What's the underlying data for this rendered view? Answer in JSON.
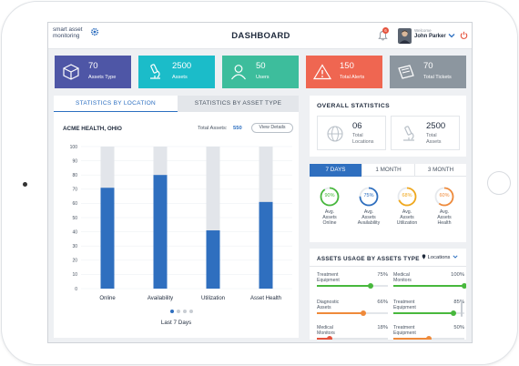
{
  "app": {
    "logo_line1": "smart asset",
    "logo_line2": "monitoring",
    "title": "DASHBOARD",
    "notification_count": "6",
    "welcome": "Welcome",
    "user_name": "John Parker"
  },
  "summary_cards": [
    {
      "value": "70",
      "label": "Assets Type",
      "color": "#4e56a6",
      "icon": "cube-icon"
    },
    {
      "value": "2500",
      "label": "Assets",
      "color": "#1bbcc9",
      "icon": "microscope-icon"
    },
    {
      "value": "50",
      "label": "Users",
      "color": "#3dbd9c",
      "icon": "user-icon"
    },
    {
      "value": "150",
      "label": "Total Alerts",
      "color": "#ef6651",
      "icon": "warning-icon"
    },
    {
      "value": "70",
      "label": "Total Tickets",
      "color": "#8c969f",
      "icon": "ticket-icon"
    }
  ],
  "left_panel": {
    "tabs": [
      "STATISTICS BY LOCATION",
      "STATISTICS BY ASSET TYPE"
    ],
    "location": "ACME HEALTH, OHIO",
    "total_assets_label": "Total Assets:",
    "total_assets_value": "550",
    "view_details": "View Details",
    "period": "Last 7 Days"
  },
  "chart_data": {
    "type": "bar",
    "categories": [
      "Online",
      "Availability",
      "Utilization",
      "Asset Health"
    ],
    "values": [
      71,
      80,
      41,
      61
    ],
    "ylim": [
      0,
      100
    ],
    "yticks": [
      0,
      10,
      20,
      30,
      40,
      50,
      60,
      70,
      80,
      90,
      100
    ],
    "bar_color": "#2f6fbf",
    "track_color": "#e2e5ea",
    "grid": true
  },
  "overall": {
    "title": "OVERALL STATISTICS",
    "locations_value": "06",
    "locations_label1": "Total",
    "locations_label2": "Locations",
    "assets_value": "2500",
    "assets_label1": "Total",
    "assets_label2": "Assets"
  },
  "period_tabs": [
    "7 DAYS",
    "1 MONTH",
    "3 MONTH"
  ],
  "rings": [
    {
      "value": "90%",
      "pct": 90,
      "color": "#48b83d",
      "label": [
        "Avg.",
        "Assets",
        "Online"
      ]
    },
    {
      "value": "75%",
      "pct": 75,
      "color": "#2f6fbf",
      "label": [
        "Avg.",
        "Assets",
        "Availability"
      ]
    },
    {
      "value": "68%",
      "pct": 68,
      "color": "#f0a81c",
      "label": [
        "Avg.",
        "Assets",
        "Utilization"
      ]
    },
    {
      "value": "60%",
      "pct": 60,
      "color": "#ef8a3a",
      "label": [
        "Avg.",
        "Assets",
        "Health"
      ]
    }
  ],
  "usage": {
    "title": "ASSETS USAGE BY ASSETS TYPE",
    "selector": "Locations",
    "items": [
      {
        "name": [
          "Treatment",
          "Equipment"
        ],
        "pct": "75%",
        "value": 75,
        "color": "#48b83d"
      },
      {
        "name": [
          "Medical",
          "Monitors"
        ],
        "pct": "100%",
        "value": 100,
        "color": "#48b83d"
      },
      {
        "name": [
          "Diagnostic",
          "Assets"
        ],
        "pct": "66%",
        "value": 66,
        "color": "#ef8a3a"
      },
      {
        "name": [
          "Treatment",
          "Equipment"
        ],
        "pct": "85%",
        "value": 85,
        "color": "#48b83d"
      },
      {
        "name": [
          "Medical",
          "Monitors"
        ],
        "pct": "18%",
        "value": 18,
        "color": "#e5533d"
      },
      {
        "name": [
          "Treatment",
          "Equipment"
        ],
        "pct": "50%",
        "value": 50,
        "color": "#ef8a3a"
      }
    ]
  }
}
